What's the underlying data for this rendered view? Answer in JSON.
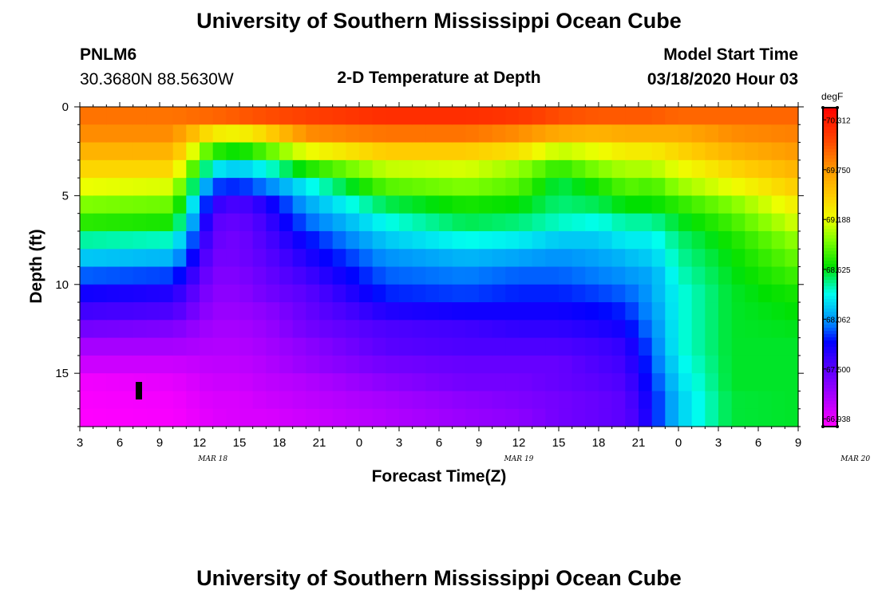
{
  "title_top": "University of Southern Mississippi Ocean Cube",
  "title_bottom": "University of Southern Mississippi Ocean Cube",
  "station": {
    "id": "PNLM6",
    "coords": "30.3680N 88.5630W"
  },
  "model_start": {
    "label": "Model Start Time",
    "value": "03/18/2020 Hour 03"
  },
  "chart_data": {
    "type": "heatmap",
    "title": "2-D Temperature at Depth",
    "xlabel": "Forecast Time(Z)",
    "ylabel": "Depth (ft)",
    "x_start_hour_z": 3,
    "x_end_hour_z": 57,
    "x_tick_labels": [
      "3",
      "6",
      "9",
      "12",
      "15",
      "18",
      "21",
      "0",
      "3",
      "6",
      "9",
      "12",
      "15",
      "18",
      "21",
      "0",
      "3",
      "6",
      "9"
    ],
    "date_labels": [
      {
        "text": "MAR 18",
        "hour": 13
      },
      {
        "text": "MAR 19",
        "hour": 36
      },
      {
        "text": "MAR 20",
        "hour": 61.3
      }
    ],
    "ylim": [
      0,
      18
    ],
    "y_ticks": [
      "0",
      "5",
      "10",
      "15"
    ],
    "depth_layers_ft": [
      0,
      1,
      2,
      3,
      4,
      5,
      6,
      7,
      8,
      9,
      10,
      11,
      12,
      13,
      14,
      15,
      16,
      17
    ],
    "temperature_degF_by_time": {
      "hours": [
        3,
        10,
        13,
        15,
        17,
        20,
        26,
        32,
        36,
        39,
        42,
        44,
        45,
        46,
        48,
        52,
        57
      ],
      "profiles": [
        [
          69.9,
          69.8,
          69.6,
          69.4,
          69.2,
          68.95,
          68.75,
          68.45,
          68.2,
          67.95,
          67.75,
          67.6,
          67.4,
          67.2,
          67.05,
          66.9,
          66.87,
          66.85
        ],
        [
          69.9,
          69.8,
          69.6,
          69.4,
          69.15,
          68.9,
          68.7,
          68.4,
          68.15,
          67.9,
          67.7,
          67.55,
          67.35,
          67.2,
          67.05,
          66.95,
          66.9,
          66.88
        ],
        [
          69.95,
          69.3,
          68.75,
          68.3,
          67.9,
          67.65,
          67.5,
          67.45,
          67.4,
          67.35,
          67.3,
          67.25,
          67.2,
          67.15,
          67.1,
          67.05,
          67.0,
          66.97
        ],
        [
          70.0,
          69.25,
          68.65,
          68.2,
          67.85,
          67.55,
          67.45,
          67.4,
          67.4,
          67.35,
          67.3,
          67.25,
          67.2,
          67.15,
          67.1,
          67.05,
          67.0,
          67.0
        ],
        [
          70.05,
          69.4,
          68.85,
          68.35,
          68.0,
          67.7,
          67.6,
          67.55,
          67.5,
          67.45,
          67.4,
          67.3,
          67.25,
          67.2,
          67.15,
          67.1,
          67.05,
          67.0
        ],
        [
          70.1,
          69.8,
          69.2,
          68.7,
          68.3,
          68.1,
          67.95,
          67.8,
          67.7,
          67.6,
          67.5,
          67.45,
          67.4,
          67.3,
          67.25,
          67.15,
          67.1,
          67.05
        ],
        [
          70.2,
          69.9,
          69.45,
          69.1,
          68.85,
          68.55,
          68.35,
          68.2,
          68.05,
          67.95,
          67.85,
          67.7,
          67.55,
          67.5,
          67.4,
          67.3,
          67.2,
          67.15
        ],
        [
          70.2,
          69.9,
          69.45,
          69.15,
          68.95,
          68.7,
          68.55,
          68.35,
          68.15,
          68.0,
          67.9,
          67.75,
          67.6,
          67.55,
          67.45,
          67.4,
          67.3,
          67.25
        ],
        [
          70.15,
          69.8,
          69.35,
          69.0,
          68.85,
          68.65,
          68.5,
          68.3,
          68.1,
          67.95,
          67.85,
          67.75,
          67.65,
          67.55,
          67.45,
          67.4,
          67.35,
          67.3
        ],
        [
          70.05,
          69.65,
          69.1,
          68.75,
          68.55,
          68.5,
          68.4,
          68.2,
          68.05,
          67.95,
          67.85,
          67.75,
          67.65,
          67.55,
          67.45,
          67.45,
          67.4,
          67.4
        ],
        [
          70.0,
          69.6,
          69.2,
          68.95,
          68.7,
          68.55,
          68.35,
          68.2,
          68.1,
          68.0,
          67.9,
          67.8,
          67.7,
          67.6,
          67.55,
          67.5,
          67.45,
          67.45
        ],
        [
          70.0,
          69.65,
          69.3,
          69.05,
          68.85,
          68.65,
          68.45,
          68.3,
          68.15,
          68.05,
          67.95,
          67.85,
          67.75,
          67.65,
          67.6,
          67.55,
          67.5,
          67.5
        ],
        [
          70.0,
          69.65,
          69.3,
          69.05,
          68.85,
          68.65,
          68.45,
          68.3,
          68.2,
          68.1,
          68.0,
          67.95,
          67.9,
          67.8,
          67.75,
          67.7,
          67.65,
          67.6
        ],
        [
          70.0,
          69.65,
          69.3,
          69.05,
          68.8,
          68.65,
          68.45,
          68.3,
          68.2,
          68.1,
          68.1,
          68.05,
          68.0,
          67.95,
          67.9,
          67.85,
          67.8,
          67.8
        ],
        [
          69.95,
          69.65,
          69.4,
          69.2,
          69.0,
          68.75,
          68.6,
          68.5,
          68.45,
          68.4,
          68.35,
          68.35,
          68.35,
          68.35,
          68.3,
          68.25,
          68.2,
          68.2
        ],
        [
          69.95,
          69.8,
          69.6,
          69.4,
          69.2,
          68.95,
          68.8,
          68.7,
          68.65,
          68.62,
          68.6,
          68.6,
          68.6,
          68.6,
          68.6,
          68.6,
          68.58,
          68.58
        ],
        [
          69.95,
          69.85,
          69.75,
          69.6,
          69.45,
          69.3,
          69.15,
          69.0,
          68.9,
          68.8,
          68.7,
          68.65,
          68.62,
          68.6,
          68.6,
          68.6,
          68.6,
          68.6
        ]
      ]
    },
    "colorbar": {
      "unit": "degF",
      "labels": [
        "70.312",
        "69.750",
        "69.188",
        "68.625",
        "68.062",
        "67.500",
        "66.938"
      ],
      "vmin": 66.85,
      "vmax": 70.45,
      "stops": [
        {
          "v": 66.85,
          "color": "#ff00ff"
        },
        {
          "v": 67.25,
          "color": "#9900ff"
        },
        {
          "v": 67.6,
          "color": "#4000ff"
        },
        {
          "v": 67.8,
          "color": "#0000ff"
        },
        {
          "v": 68.0,
          "color": "#0080ff"
        },
        {
          "v": 68.35,
          "color": "#00ffee"
        },
        {
          "v": 68.65,
          "color": "#00e000"
        },
        {
          "v": 68.95,
          "color": "#80ff00"
        },
        {
          "v": 69.2,
          "color": "#eeff00"
        },
        {
          "v": 69.45,
          "color": "#ffcc00"
        },
        {
          "v": 69.75,
          "color": "#ff9900"
        },
        {
          "v": 70.1,
          "color": "#ff4000"
        },
        {
          "v": 70.45,
          "color": "#ff0000"
        }
      ]
    }
  }
}
